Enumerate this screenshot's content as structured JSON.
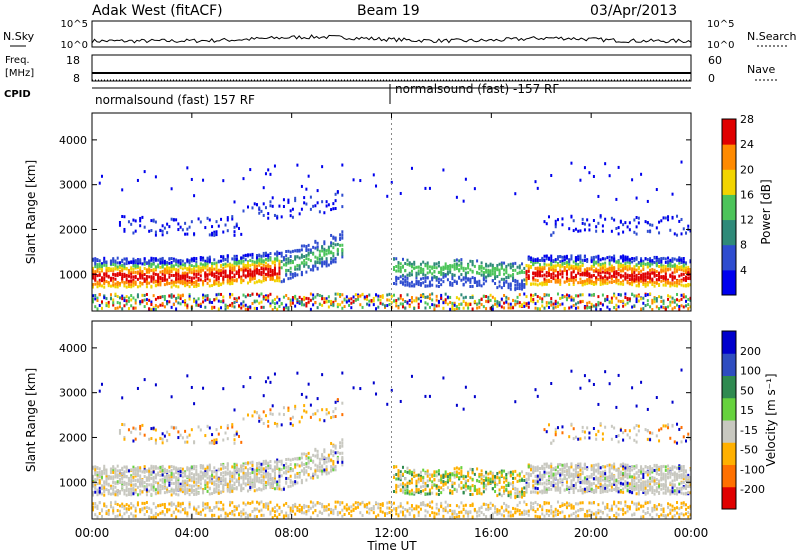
{
  "header": {
    "radar": "Adak West (fitACF)",
    "beam": "Beam 19",
    "date": "03/Apr/2013"
  },
  "labels": {
    "nsky": "N.Sky",
    "freq_top": "Freq.",
    "freq_unit": "[MHz]",
    "cpid": "CPID",
    "nsearch": "N.Search",
    "nave": "Nave",
    "ylabel": "Slant Range [km]",
    "xlabel": "Time UT",
    "power_label": "Power [dB]",
    "velocity_label": "Velocity [m s⁻¹]"
  },
  "noise_axis": {
    "left": [
      "10^5",
      "10^0"
    ],
    "right": [
      "10^5",
      "10^0"
    ]
  },
  "freq_axis": {
    "left": [
      "18",
      "8"
    ],
    "right": [
      "60",
      "0"
    ]
  },
  "cpid_segments": [
    "normalsound (fast) 157 RF",
    "normalsound (fast) -157 RF"
  ],
  "chart_data": [
    {
      "type": "heatmap",
      "panel": "power",
      "x_range_hours": [
        0,
        24
      ],
      "xticks": [
        "00:00",
        "04:00",
        "08:00",
        "12:00",
        "16:00",
        "20:00",
        "00:00"
      ],
      "ylim": [
        180,
        4600
      ],
      "yticks": [
        1000,
        2000,
        3000,
        4000
      ],
      "colorbar": {
        "label": "Power [dB]",
        "ticks": [
          4,
          8,
          12,
          16,
          20,
          24,
          28
        ]
      },
      "colors": [
        "#0000ee",
        "#2f4dd0",
        "#2f8a79",
        "#4cc45a",
        "#f2d400",
        "#ff8a00",
        "#e00000"
      ],
      "regions": [
        {
          "t": [
            0.0,
            7.5
          ],
          "r": [
            850,
            1450
          ],
          "level": "strong"
        },
        {
          "t": [
            7.5,
            10.0
          ],
          "r": [
            1100,
            1850
          ],
          "level": "moderate"
        },
        {
          "t": [
            1.0,
            10.0
          ],
          "r": [
            1850,
            2900
          ],
          "level": "weak"
        },
        {
          "t": [
            12.0,
            17.0
          ],
          "r": [
            650,
            1450
          ],
          "level": "moderate"
        },
        {
          "t": [
            17.0,
            24.0
          ],
          "r": [
            850,
            1450
          ],
          "level": "strong"
        },
        {
          "t": [
            18.0,
            24.0
          ],
          "r": [
            1800,
            2500
          ],
          "level": "weak"
        }
      ]
    },
    {
      "type": "heatmap",
      "panel": "velocity",
      "x_range_hours": [
        0,
        24
      ],
      "xticks": [
        "00:00",
        "04:00",
        "08:00",
        "12:00",
        "16:00",
        "20:00",
        "00:00"
      ],
      "ylim": [
        180,
        4600
      ],
      "yticks": [
        1000,
        2000,
        3000,
        4000
      ],
      "colorbar": {
        "label": "Velocity [m s⁻¹]",
        "ticks": [
          200,
          100,
          50,
          15,
          -15,
          -50,
          -100,
          -200
        ]
      },
      "colors": [
        "#0000cc",
        "#2f4dc0",
        "#2f8a50",
        "#66d23d",
        "#c8c8c0",
        "#ffb000",
        "#ff7000",
        "#e00000"
      ]
    }
  ]
}
